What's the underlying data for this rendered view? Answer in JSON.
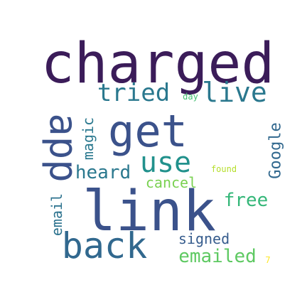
{
  "words": [
    {
      "text": "charged",
      "color": "#3b1c59"
    },
    {
      "text": "get",
      "color": "#3b528b"
    },
    {
      "text": "link",
      "color": "#3b528b"
    },
    {
      "text": "back",
      "color": "#31688e"
    },
    {
      "text": "app",
      "color": "#3b528b"
    },
    {
      "text": "tried",
      "color": "#2a788e"
    },
    {
      "text": "live",
      "color": "#2a788e"
    },
    {
      "text": "use",
      "color": "#21918c"
    },
    {
      "text": "email",
      "color": "#2c728e"
    },
    {
      "text": "heard",
      "color": "#2a788e"
    },
    {
      "text": "cancel",
      "color": "#7ad151"
    },
    {
      "text": "free",
      "color": "#35b779"
    },
    {
      "text": "Google",
      "color": "#31688e"
    },
    {
      "text": "signed",
      "color": "#365c8d"
    },
    {
      "text": "emailed",
      "color": "#5ec962"
    },
    {
      "text": "magic",
      "color": "#2a788e"
    },
    {
      "text": "day",
      "color": "#42be71"
    },
    {
      "text": "found",
      "color": "#b5de2b"
    },
    {
      "text": "7",
      "color": "#fde725"
    }
  ]
}
